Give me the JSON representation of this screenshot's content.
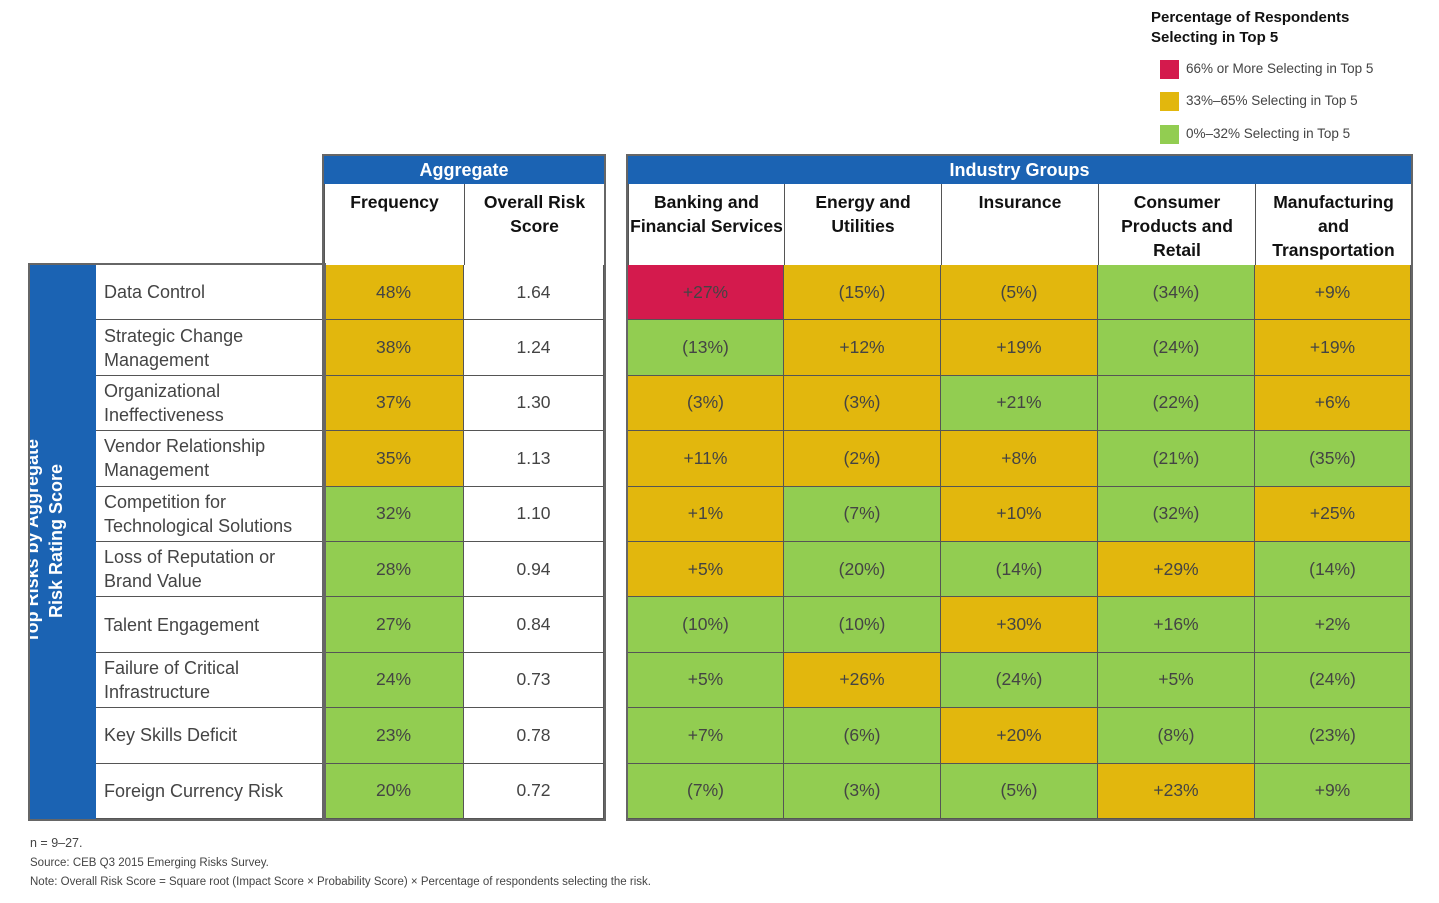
{
  "legend": {
    "title": "Percentage of Respondents\nSelecting in Top 5",
    "items": [
      {
        "label": "66% or More Selecting in Top 5",
        "color": "#d41a4d",
        "key": "red"
      },
      {
        "label": "33%–65% Selecting in Top 5",
        "color": "#e2b70d",
        "key": "yellow"
      },
      {
        "label": "0%–32% Selecting in Top 5",
        "color": "#92cd51",
        "key": "green"
      }
    ]
  },
  "chart_data": {
    "type": "table",
    "row_axis_label": "Top Risks by Aggregate\nRisk Rating Score",
    "aggregate_header": "Aggregate",
    "aggregate_columns": [
      "Frequency",
      "Overall Risk Score"
    ],
    "industry_header": "Industry Groups",
    "industry_columns": [
      "Banking and Financial Services",
      "Energy and Utilities",
      "Insurance",
      "Consumer Products and Retail",
      "Manufacturing and Transportation"
    ],
    "rows": [
      {
        "risk": "Data Control",
        "frequency": {
          "text": "48%",
          "color": "yellow"
        },
        "score": "1.64",
        "industries": [
          {
            "text": "+27%",
            "color": "red"
          },
          {
            "text": "(15%)",
            "color": "yellow"
          },
          {
            "text": "(5%)",
            "color": "yellow"
          },
          {
            "text": "(34%)",
            "color": "green"
          },
          {
            "text": "+9%",
            "color": "yellow"
          }
        ]
      },
      {
        "risk": "Strategic Change Management",
        "frequency": {
          "text": "38%",
          "color": "yellow"
        },
        "score": "1.24",
        "industries": [
          {
            "text": "(13%)",
            "color": "green"
          },
          {
            "text": "+12%",
            "color": "yellow"
          },
          {
            "text": "+19%",
            "color": "yellow"
          },
          {
            "text": "(24%)",
            "color": "green"
          },
          {
            "text": "+19%",
            "color": "yellow"
          }
        ]
      },
      {
        "risk": "Organizational Ineffectiveness",
        "frequency": {
          "text": "37%",
          "color": "yellow"
        },
        "score": "1.30",
        "industries": [
          {
            "text": "(3%)",
            "color": "yellow"
          },
          {
            "text": "(3%)",
            "color": "yellow"
          },
          {
            "text": "+21%",
            "color": "green"
          },
          {
            "text": "(22%)",
            "color": "green"
          },
          {
            "text": "+6%",
            "color": "yellow"
          }
        ]
      },
      {
        "risk": "Vendor Relationship Management",
        "frequency": {
          "text": "35%",
          "color": "yellow"
        },
        "score": "1.13",
        "industries": [
          {
            "text": "+11%",
            "color": "yellow"
          },
          {
            "text": "(2%)",
            "color": "yellow"
          },
          {
            "text": "+8%",
            "color": "yellow"
          },
          {
            "text": "(21%)",
            "color": "green"
          },
          {
            "text": "(35%)",
            "color": "green"
          }
        ]
      },
      {
        "risk": "Competition for Technological Solutions",
        "frequency": {
          "text": "32%",
          "color": "green"
        },
        "score": "1.10",
        "industries": [
          {
            "text": "+1%",
            "color": "yellow"
          },
          {
            "text": "(7%)",
            "color": "green"
          },
          {
            "text": "+10%",
            "color": "yellow"
          },
          {
            "text": "(32%)",
            "color": "green"
          },
          {
            "text": "+25%",
            "color": "yellow"
          }
        ]
      },
      {
        "risk": "Loss of Reputation or Brand Value",
        "frequency": {
          "text": "28%",
          "color": "green"
        },
        "score": "0.94",
        "industries": [
          {
            "text": "+5%",
            "color": "yellow"
          },
          {
            "text": "(20%)",
            "color": "green"
          },
          {
            "text": "(14%)",
            "color": "green"
          },
          {
            "text": "+29%",
            "color": "yellow"
          },
          {
            "text": "(14%)",
            "color": "green"
          }
        ]
      },
      {
        "risk": "Talent Engagement",
        "frequency": {
          "text": "27%",
          "color": "green"
        },
        "score": "0.84",
        "industries": [
          {
            "text": "(10%)",
            "color": "green"
          },
          {
            "text": "(10%)",
            "color": "green"
          },
          {
            "text": "+30%",
            "color": "yellow"
          },
          {
            "text": "+16%",
            "color": "green"
          },
          {
            "text": "+2%",
            "color": "green"
          }
        ]
      },
      {
        "risk": "Failure of Critical Infrastructure",
        "frequency": {
          "text": "24%",
          "color": "green"
        },
        "score": "0.73",
        "industries": [
          {
            "text": "+5%",
            "color": "green"
          },
          {
            "text": "+26%",
            "color": "yellow"
          },
          {
            "text": "(24%)",
            "color": "green"
          },
          {
            "text": "+5%",
            "color": "green"
          },
          {
            "text": "(24%)",
            "color": "green"
          }
        ]
      },
      {
        "risk": "Key Skills Deficit",
        "frequency": {
          "text": "23%",
          "color": "green"
        },
        "score": "0.78",
        "industries": [
          {
            "text": "+7%",
            "color": "green"
          },
          {
            "text": "(6%)",
            "color": "green"
          },
          {
            "text": "+20%",
            "color": "yellow"
          },
          {
            "text": "(8%)",
            "color": "green"
          },
          {
            "text": "(23%)",
            "color": "green"
          }
        ]
      },
      {
        "risk": "Foreign Currency Risk",
        "frequency": {
          "text": "20%",
          "color": "green"
        },
        "score": "0.72",
        "industries": [
          {
            "text": "(7%)",
            "color": "green"
          },
          {
            "text": "(3%)",
            "color": "green"
          },
          {
            "text": "(5%)",
            "color": "green"
          },
          {
            "text": "+23%",
            "color": "yellow"
          },
          {
            "text": "+9%",
            "color": "green"
          }
        ]
      }
    ]
  },
  "notes": {
    "n": "n = 9–27.",
    "source": "Source: CEB Q3 2015 Emerging Risks Survey.",
    "note": "Note: Overall Risk Score = Square root (Impact Score × Probability Score) × Percentage of respondents selecting the risk."
  }
}
